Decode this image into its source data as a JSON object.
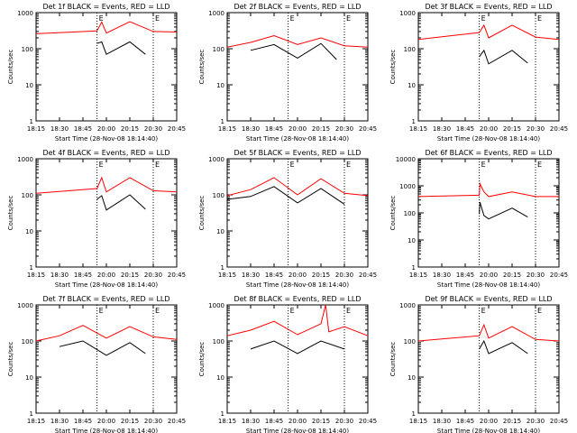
{
  "chart_data": [
    {
      "type": "line",
      "title": "Det 1f BLACK = Events, RED = LLD",
      "ylabel": "Counts/sec",
      "xlabel": "Start Time (28-Nov-08 18:14:40)",
      "x_tick_labels": [
        "18:15",
        "18:30",
        "18:45",
        "20:00",
        "20:15",
        "20:30",
        "20:45"
      ],
      "y_scale": "log",
      "ylim": [
        1,
        1000
      ],
      "y_tick_labels": [
        "1",
        "10",
        "100",
        "1000"
      ],
      "markers": [
        {
          "label": "E",
          "x": "19:30"
        },
        {
          "label": "E",
          "x": "20:30"
        }
      ],
      "series": [
        {
          "name": "Events",
          "color": "#000000",
          "x": [
            "19:30",
            "19:45",
            "20:00",
            "20:15",
            "20:25"
          ],
          "y": [
            140,
            155,
            70,
            155,
            70
          ]
        },
        {
          "name": "LLD",
          "color": "#ff0000",
          "x": [
            "18:15",
            "19:30",
            "19:45",
            "20:00",
            "20:15",
            "20:30",
            "20:45"
          ],
          "y": [
            260,
            310,
            550,
            270,
            560,
            300,
            290
          ]
        }
      ]
    },
    {
      "type": "line",
      "title": "Det 2f BLACK = Events, RED = LLD",
      "ylabel": "Counts/sec",
      "xlabel": "Start Time (28-Nov-08 18:14:40)",
      "x_tick_labels": [
        "18:15",
        "18:30",
        "18:45",
        "20:00",
        "20:15",
        "20:30",
        "20:45"
      ],
      "y_scale": "log",
      "ylim": [
        1,
        1000
      ],
      "y_tick_labels": [
        "1",
        "10",
        "100",
        "1000"
      ],
      "markers": [
        {
          "label": "E",
          "x": "19:30"
        },
        {
          "label": "E",
          "x": "20:30"
        }
      ],
      "series": [
        {
          "name": "Events",
          "color": "#000000",
          "x": [
            "18:30",
            "18:45",
            "20:00",
            "20:15",
            "20:25"
          ],
          "y": [
            90,
            130,
            55,
            140,
            50
          ]
        },
        {
          "name": "LLD",
          "color": "#ff0000",
          "x": [
            "18:15",
            "18:30",
            "18:45",
            "20:00",
            "20:15",
            "20:30",
            "20:45"
          ],
          "y": [
            110,
            150,
            230,
            130,
            200,
            120,
            110
          ]
        }
      ]
    },
    {
      "type": "line",
      "title": "Det 3f BLACK = Events, RED = LLD",
      "ylabel": "Counts/sec",
      "xlabel": "Start Time (28-Nov-08 18:14:40)",
      "x_tick_labels": [
        "18:15",
        "18:30",
        "18:45",
        "20:00",
        "20:15",
        "20:30",
        "20:45"
      ],
      "y_scale": "log",
      "ylim": [
        1,
        1000
      ],
      "y_tick_labels": [
        "1",
        "10",
        "100",
        "1000"
      ],
      "markers": [
        {
          "label": "E",
          "x": "19:30"
        },
        {
          "label": "E",
          "x": "20:30"
        }
      ],
      "series": [
        {
          "name": "Events",
          "color": "#000000",
          "x": [
            "19:30",
            "19:45",
            "20:00",
            "20:15",
            "20:25"
          ],
          "y": [
            60,
            90,
            38,
            90,
            40
          ]
        },
        {
          "name": "LLD",
          "color": "#ff0000",
          "x": [
            "18:15",
            "19:30",
            "19:45",
            "20:00",
            "20:15",
            "20:30",
            "20:45"
          ],
          "y": [
            180,
            280,
            450,
            200,
            450,
            210,
            180
          ]
        }
      ]
    },
    {
      "type": "line",
      "title": "Det 4f BLACK = Events, RED = LLD",
      "ylabel": "Counts/sec",
      "xlabel": "Start Time (28-Nov-08 18:14:40)",
      "x_tick_labels": [
        "18:15",
        "18:30",
        "18:45",
        "20:00",
        "20:15",
        "20:30",
        "20:45"
      ],
      "y_scale": "log",
      "ylim": [
        1,
        1000
      ],
      "y_tick_labels": [
        "1",
        "10",
        "100",
        "1000"
      ],
      "markers": [
        {
          "label": "E",
          "x": "19:30"
        },
        {
          "label": "E",
          "x": "20:30"
        }
      ],
      "series": [
        {
          "name": "Events",
          "color": "#000000",
          "x": [
            "19:30",
            "19:45",
            "20:00",
            "20:15",
            "20:25"
          ],
          "y": [
            75,
            95,
            38,
            100,
            40
          ]
        },
        {
          "name": "LLD",
          "color": "#ff0000",
          "x": [
            "18:15",
            "19:30",
            "19:45",
            "20:00",
            "20:15",
            "20:30",
            "20:45"
          ],
          "y": [
            110,
            150,
            300,
            120,
            300,
            130,
            120
          ]
        }
      ]
    },
    {
      "type": "line",
      "title": "Det 5f BLACK = Events, RED = LLD",
      "ylabel": "Counts/sec",
      "xlabel": "Start Time (28-Nov-08 18:14:40)",
      "x_tick_labels": [
        "18:15",
        "18:30",
        "18:45",
        "20:00",
        "20:15",
        "20:30",
        "20:45"
      ],
      "y_scale": "log",
      "ylim": [
        1,
        1000
      ],
      "y_tick_labels": [
        "1",
        "10",
        "100",
        "1000"
      ],
      "markers": [
        {
          "label": "E",
          "x": "19:30"
        },
        {
          "label": "E",
          "x": "20:30"
        }
      ],
      "series": [
        {
          "name": "Events",
          "color": "#000000",
          "x": [
            "18:15",
            "18:30",
            "18:45",
            "20:00",
            "20:15",
            "20:30"
          ],
          "y": [
            75,
            90,
            170,
            60,
            150,
            55
          ]
        },
        {
          "name": "LLD",
          "color": "#ff0000",
          "x": [
            "18:15",
            "18:30",
            "18:45",
            "20:00",
            "20:15",
            "20:30",
            "20:45"
          ],
          "y": [
            95,
            140,
            300,
            100,
            280,
            110,
            95
          ]
        }
      ]
    },
    {
      "type": "line",
      "title": "Det 6f BLACK = Events, RED = LLD",
      "ylabel": "Counts/sec",
      "xlabel": "Start Time (28-Nov-08 18:14:40)",
      "x_tick_labels": [
        "18:15",
        "18:30",
        "18:45",
        "20:00",
        "20:15",
        "20:30",
        "20:45"
      ],
      "y_scale": "log",
      "ylim": [
        1,
        10000
      ],
      "y_tick_labels": [
        "1",
        "10",
        "100",
        "1000",
        "10000"
      ],
      "markers": [
        {
          "label": "E",
          "x": "19:30"
        },
        {
          "label": "E",
          "x": "20:30"
        }
      ],
      "series": [
        {
          "name": "Events",
          "color": "#000000",
          "x": [
            "19:30",
            "19:32",
            "19:45",
            "20:00",
            "20:15",
            "20:25"
          ],
          "y": [
            90,
            250,
            80,
            60,
            150,
            70
          ]
        },
        {
          "name": "LLD",
          "color": "#ff0000",
          "x": [
            "18:15",
            "19:30",
            "19:32",
            "19:45",
            "20:00",
            "20:15",
            "20:30",
            "20:45"
          ],
          "y": [
            400,
            450,
            1200,
            600,
            400,
            600,
            400,
            400
          ]
        }
      ]
    },
    {
      "type": "line",
      "title": "Det 7f BLACK = Events, RED = LLD",
      "ylabel": "Counts/sec",
      "xlabel": "Start Time (28-Nov-08 18:14:40)",
      "x_tick_labels": [
        "18:15",
        "18:30",
        "18:45",
        "20:00",
        "20:15",
        "20:30",
        "20:45"
      ],
      "y_scale": "log",
      "ylim": [
        1,
        1000
      ],
      "y_tick_labels": [
        "1",
        "10",
        "100",
        "1000"
      ],
      "markers": [
        {
          "label": "E",
          "x": "19:30"
        },
        {
          "label": "E",
          "x": "20:30"
        }
      ],
      "series": [
        {
          "name": "Events",
          "color": "#000000",
          "x": [
            "18:30",
            "18:45",
            "20:00",
            "20:15",
            "20:25"
          ],
          "y": [
            70,
            100,
            40,
            90,
            45
          ]
        },
        {
          "name": "LLD",
          "color": "#ff0000",
          "x": [
            "18:15",
            "18:30",
            "18:45",
            "20:00",
            "20:15",
            "20:30",
            "20:45"
          ],
          "y": [
            100,
            140,
            270,
            120,
            250,
            130,
            110
          ]
        }
      ]
    },
    {
      "type": "line",
      "title": "Det 8f BLACK = Events, RED = LLD",
      "ylabel": "Counts/sec",
      "xlabel": "Start Time (28-Nov-08 18:14:40)",
      "x_tick_labels": [
        "18:15",
        "18:30",
        "18:45",
        "20:00",
        "20:15",
        "20:30",
        "20:45"
      ],
      "y_scale": "log",
      "ylim": [
        1,
        1000
      ],
      "y_tick_labels": [
        "1",
        "10",
        "100",
        "1000"
      ],
      "markers": [
        {
          "label": "E",
          "x": "19:30"
        },
        {
          "label": "E",
          "x": "20:30"
        }
      ],
      "series": [
        {
          "name": "Events",
          "color": "#000000",
          "x": [
            "18:30",
            "18:45",
            "20:00",
            "20:15",
            "20:30"
          ],
          "y": [
            60,
            100,
            45,
            100,
            60
          ]
        },
        {
          "name": "LLD",
          "color": "#ff0000",
          "x": [
            "18:15",
            "18:30",
            "18:45",
            "20:00",
            "20:15",
            "20:18",
            "20:20",
            "20:30",
            "20:45"
          ],
          "y": [
            140,
            200,
            350,
            150,
            300,
            1000,
            180,
            250,
            140
          ]
        }
      ]
    },
    {
      "type": "line",
      "title": "Det 9f BLACK = Events, RED = LLD",
      "ylabel": "Counts/sec",
      "xlabel": "Start Time (28-Nov-08 18:14:40)",
      "x_tick_labels": [
        "18:15",
        "18:30",
        "18:45",
        "20:00",
        "20:15",
        "20:30",
        "20:45"
      ],
      "y_scale": "log",
      "ylim": [
        1,
        1000
      ],
      "y_tick_labels": [
        "1",
        "10",
        "100",
        "1000"
      ],
      "markers": [
        {
          "label": "E",
          "x": "19:30"
        },
        {
          "label": "E",
          "x": "20:30"
        }
      ],
      "series": [
        {
          "name": "Events",
          "color": "#000000",
          "x": [
            "19:30",
            "19:45",
            "20:00",
            "20:15",
            "20:25"
          ],
          "y": [
            60,
            100,
            45,
            90,
            45
          ]
        },
        {
          "name": "LLD",
          "color": "#ff0000",
          "x": [
            "18:15",
            "19:30",
            "19:45",
            "20:00",
            "20:15",
            "20:30",
            "20:45"
          ],
          "y": [
            100,
            140,
            280,
            120,
            250,
            110,
            100
          ]
        }
      ]
    }
  ]
}
